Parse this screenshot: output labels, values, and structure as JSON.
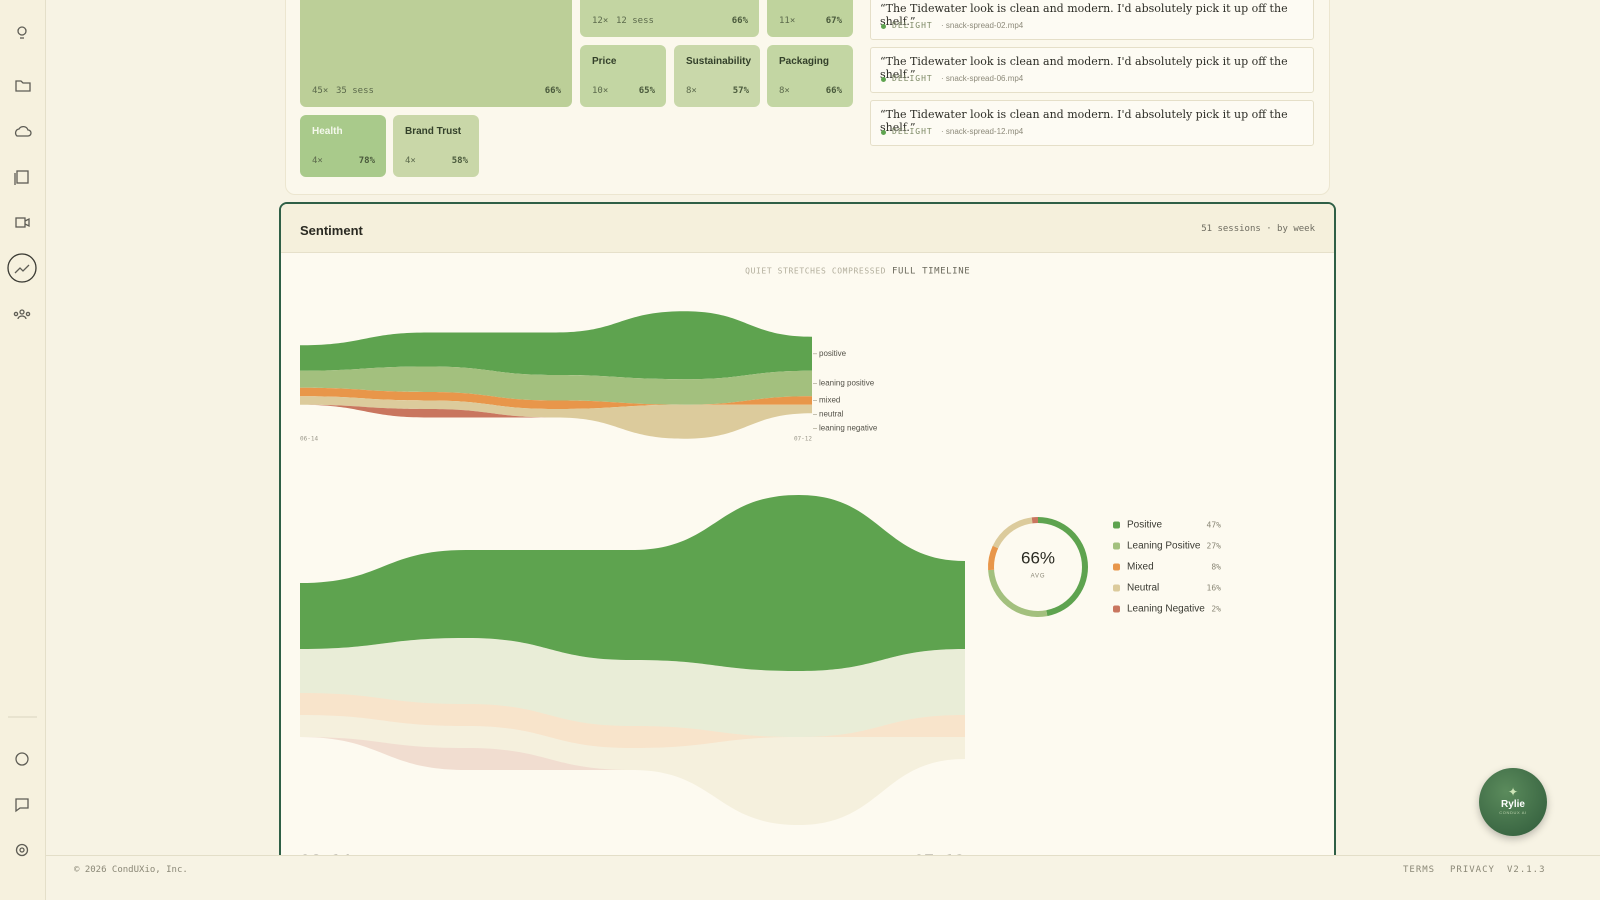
{
  "treemap": {
    "tiles": [
      {
        "count": "45×",
        "sessions": "35 sess",
        "score": "66%"
      },
      {
        "count": "12×",
        "sessions": "12 sess",
        "score": "66%"
      },
      {
        "count": "11×",
        "score": "67%"
      },
      {
        "name": "Price",
        "count": "10×",
        "score": "65%"
      },
      {
        "name": "Sustainability",
        "count": "8×",
        "score": "57%"
      },
      {
        "name": "Packaging",
        "count": "8×",
        "score": "66%"
      },
      {
        "name": "Health",
        "count": "4×",
        "score": "78%"
      },
      {
        "name": "Brand Trust",
        "count": "4×",
        "score": "58%"
      }
    ]
  },
  "quotes": [
    {
      "text": "“The Tidewater look is clean and modern. I'd absolutely pick it up off the shelf.”",
      "tag": "DELIGHT",
      "file": "· snack-spread-02.mp4"
    },
    {
      "text": "“The Tidewater look is clean and modern. I'd absolutely pick it up off the shelf.”",
      "tag": "DELIGHT",
      "file": "· snack-spread-06.mp4"
    },
    {
      "text": "“The Tidewater look is clean and modern. I'd absolutely pick it up off the shelf.”",
      "tag": "DELIGHT",
      "file": "· snack-spread-12.mp4"
    }
  ],
  "sentiment": {
    "title": "Sentiment",
    "meta": "51 sessions · by week",
    "mode_compressed": "QUIET STRETCHES COMPRESSED",
    "mode_full": "FULL TIMELINE"
  },
  "chart_data": {
    "type": "streamgraph",
    "categories": [
      "06-14",
      null,
      null,
      null,
      "07-12"
    ],
    "series": [
      {
        "name": "positive",
        "color": "#5ea34f",
        "values": [
          3,
          4,
          5,
          8,
          4
        ]
      },
      {
        "name": "leaning positive",
        "color": "#a3c07e",
        "values": [
          2,
          3,
          3,
          3,
          3
        ]
      },
      {
        "name": "mixed",
        "color": "#e8964a",
        "values": [
          1,
          1,
          1,
          0,
          1
        ]
      },
      {
        "name": "neutral",
        "color": "#dccb9c",
        "values": [
          1,
          1,
          1,
          4,
          1
        ]
      },
      {
        "name": "leaning negative",
        "color": "#c9765f",
        "values": [
          0,
          1,
          0,
          0,
          0
        ]
      }
    ]
  },
  "donut": {
    "average": "66%",
    "average_caption": "AVG",
    "segments": [
      {
        "name": "Positive",
        "value": 47,
        "label": "47%",
        "color": "#5ea34f"
      },
      {
        "name": "Leaning Positive",
        "value": 27,
        "label": "27%",
        "color": "#a3c07e"
      },
      {
        "name": "Mixed",
        "value": 8,
        "label": "8%",
        "color": "#e8964a"
      },
      {
        "name": "Neutral",
        "value": 16,
        "label": "16%",
        "color": "#dccb9c"
      },
      {
        "name": "Leaning Negative",
        "value": 2,
        "label": "2%",
        "color": "#c9765f"
      }
    ]
  },
  "footer": {
    "copyright": "© 2026 CondUXio, Inc.",
    "terms": "TERMS",
    "privacy": "PRIVACY",
    "version": "V2.1.3"
  },
  "assistant": {
    "name": "Rylie",
    "caption": "CONDUX AI"
  }
}
